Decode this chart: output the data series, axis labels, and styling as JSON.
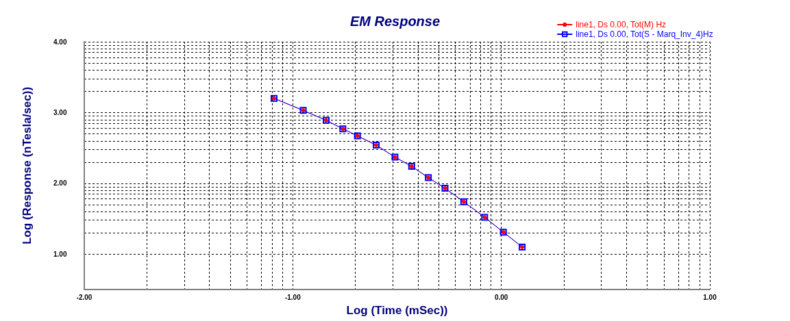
{
  "chart_data": {
    "type": "line",
    "title": "EM Response",
    "xlabel": "Log (Time (mSec))",
    "ylabel": "Log (Response (nTesla/sec))",
    "x": [
      -1.09,
      -0.95,
      -0.84,
      -0.76,
      -0.69,
      -0.6,
      -0.51,
      -0.43,
      -0.35,
      -0.27,
      -0.18,
      -0.08,
      0.01,
      0.1
    ],
    "series": [
      {
        "name": "line1, Ds 0.00, Tot(M) Hz",
        "color": "#ff0000",
        "marker": "circle",
        "values": [
          3.2,
          3.03,
          2.89,
          2.77,
          2.67,
          2.54,
          2.37,
          2.24,
          2.08,
          1.93,
          1.74,
          1.52,
          1.31,
          1.1
        ]
      },
      {
        "name": "line1, Ds 0.00, Tot(S - Marq_Inv_4)Hz",
        "color": "#0000ff",
        "marker": "square",
        "values": [
          3.2,
          3.03,
          2.89,
          2.77,
          2.67,
          2.54,
          2.37,
          2.24,
          2.08,
          1.93,
          1.74,
          1.52,
          1.31,
          1.1
        ]
      }
    ],
    "xlim": [
      -2,
      1
    ],
    "ylim": [
      0.5,
      4
    ],
    "xticks": [
      {
        "value": -2,
        "label": "-2.00"
      },
      {
        "value": -1.7,
        "label": null
      },
      {
        "value": -1.52,
        "label": null
      },
      {
        "value": -1.4,
        "label": null
      },
      {
        "value": -1.3,
        "label": null
      },
      {
        "value": -1.22,
        "label": null
      },
      {
        "value": -1.15,
        "label": null
      },
      {
        "value": -1.1,
        "label": null
      },
      {
        "value": -1.05,
        "label": null
      },
      {
        "value": -1,
        "label": "-1.00"
      },
      {
        "value": -0.7,
        "label": null
      },
      {
        "value": -0.52,
        "label": null
      },
      {
        "value": -0.4,
        "label": null
      },
      {
        "value": -0.3,
        "label": null
      },
      {
        "value": -0.22,
        "label": null
      },
      {
        "value": -0.15,
        "label": null
      },
      {
        "value": -0.1,
        "label": null
      },
      {
        "value": -0.05,
        "label": null
      },
      {
        "value": 0,
        "label": "0.00"
      },
      {
        "value": 0.3,
        "label": null
      },
      {
        "value": 0.48,
        "label": null
      },
      {
        "value": 0.6,
        "label": null
      },
      {
        "value": 0.7,
        "label": null
      },
      {
        "value": 0.78,
        "label": null
      },
      {
        "value": 0.85,
        "label": null
      },
      {
        "value": 0.9,
        "label": null
      },
      {
        "value": 0.95,
        "label": null
      },
      {
        "value": 1,
        "label": "1.00"
      }
    ],
    "yticks": [
      {
        "value": 1,
        "label": "1.00"
      },
      {
        "value": 1.3,
        "label": null
      },
      {
        "value": 1.48,
        "label": null
      },
      {
        "value": 1.6,
        "label": null
      },
      {
        "value": 1.7,
        "label": null
      },
      {
        "value": 1.78,
        "label": null
      },
      {
        "value": 1.85,
        "label": null
      },
      {
        "value": 1.9,
        "label": null
      },
      {
        "value": 1.95,
        "label": null
      },
      {
        "value": 2,
        "label": "2.00"
      },
      {
        "value": 2.3,
        "label": null
      },
      {
        "value": 2.48,
        "label": null
      },
      {
        "value": 2.6,
        "label": null
      },
      {
        "value": 2.7,
        "label": null
      },
      {
        "value": 2.78,
        "label": null
      },
      {
        "value": 2.85,
        "label": null
      },
      {
        "value": 2.9,
        "label": null
      },
      {
        "value": 2.95,
        "label": null
      },
      {
        "value": 3,
        "label": "3.00"
      },
      {
        "value": 3.3,
        "label": null
      },
      {
        "value": 3.48,
        "label": null
      },
      {
        "value": 3.6,
        "label": null
      },
      {
        "value": 3.7,
        "label": null
      },
      {
        "value": 3.78,
        "label": null
      },
      {
        "value": 3.85,
        "label": null
      },
      {
        "value": 3.9,
        "label": null
      },
      {
        "value": 3.95,
        "label": null
      },
      {
        "value": 4,
        "label": "4.00"
      }
    ],
    "grid": true,
    "legend": "top right",
    "line_style": "solid"
  }
}
